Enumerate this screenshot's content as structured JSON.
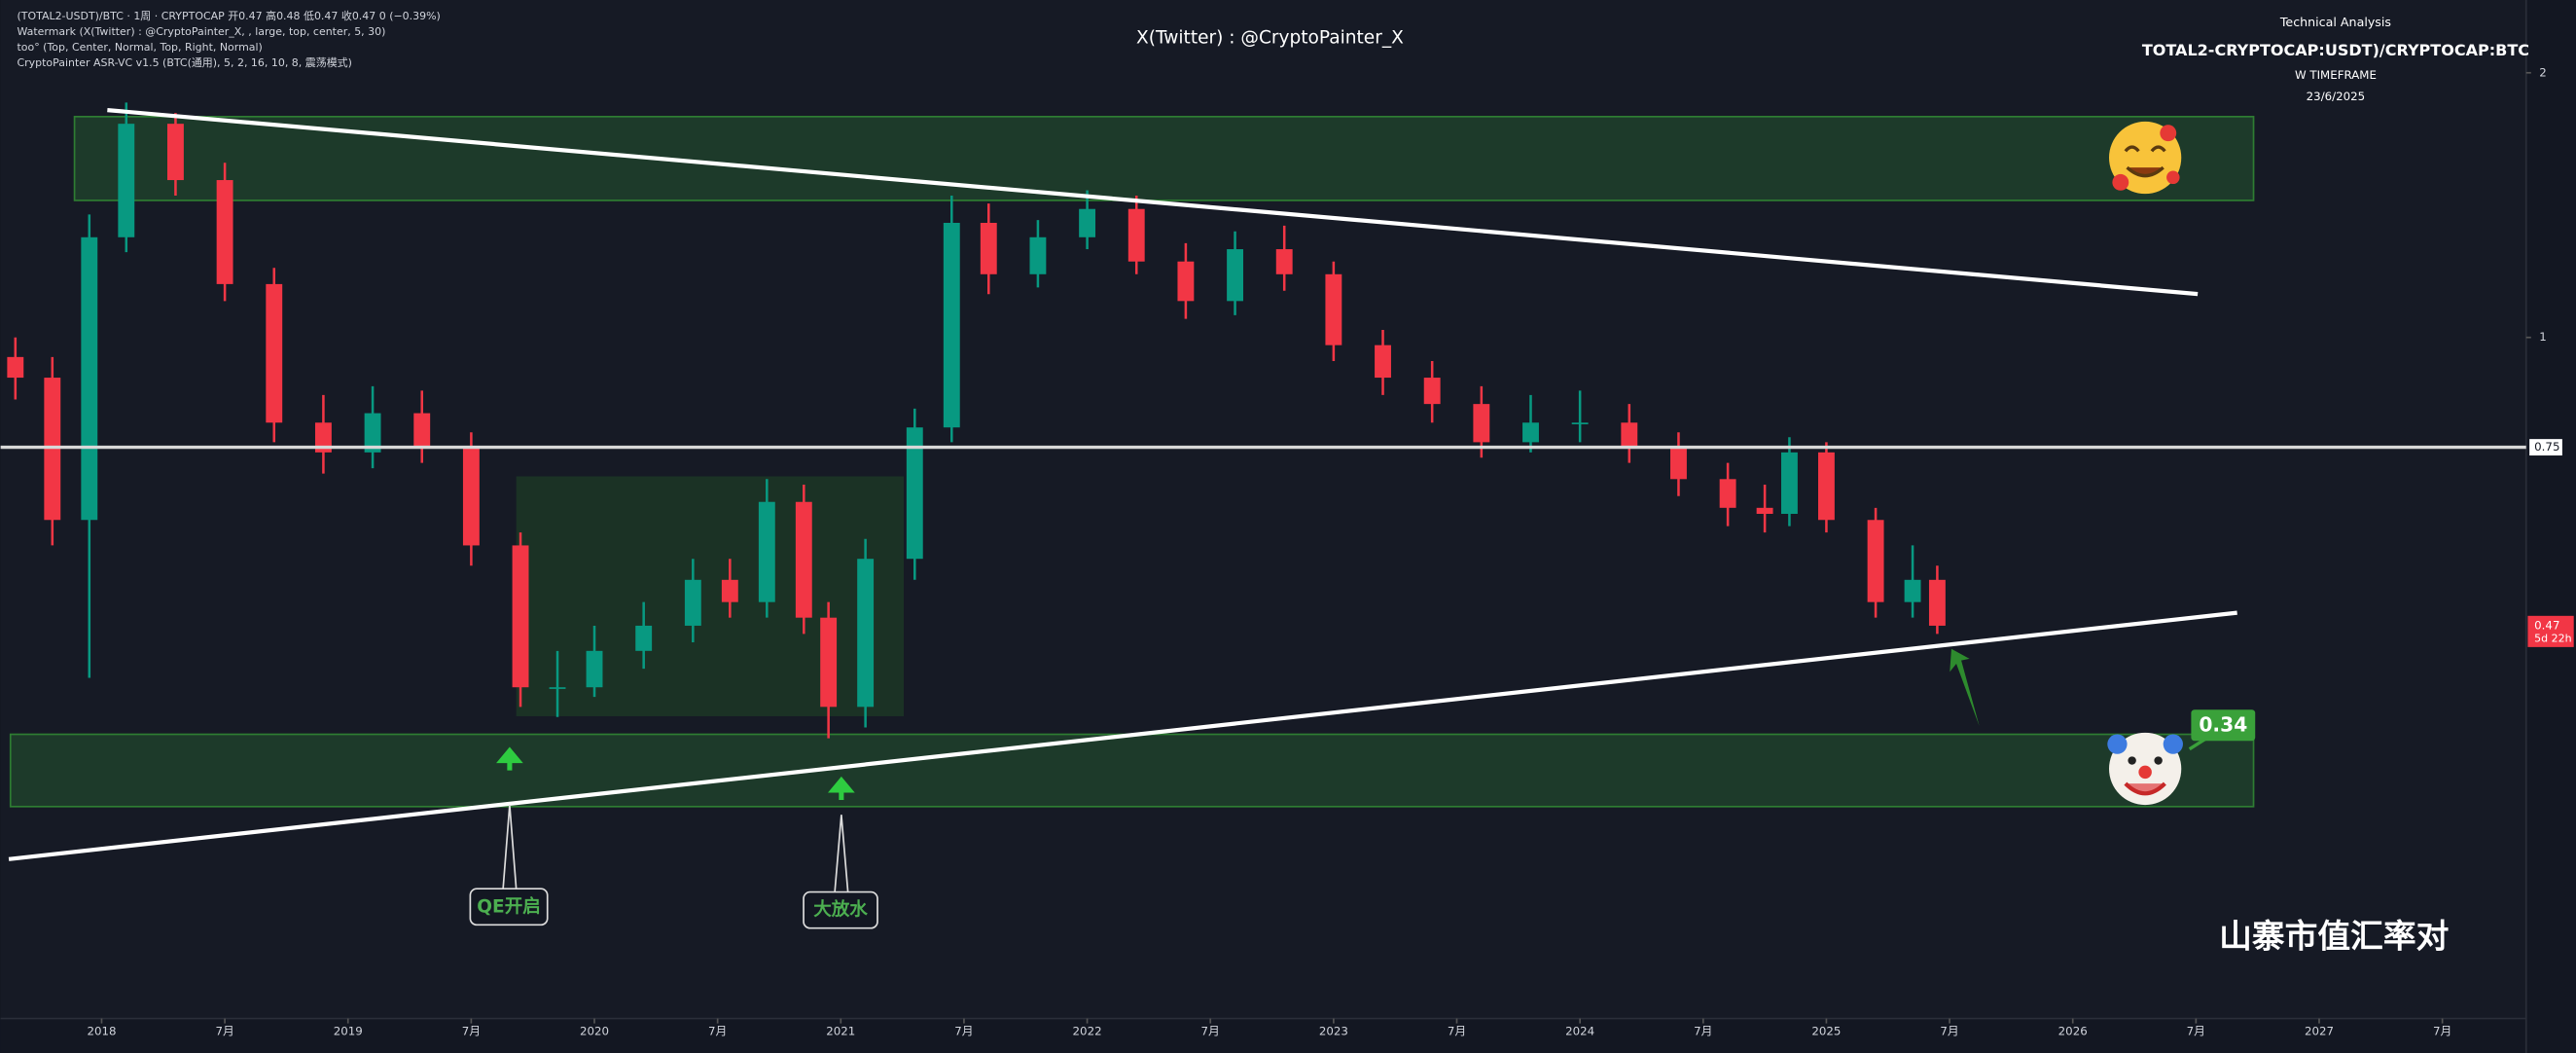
{
  "chart_data": {
    "type": "candlestick",
    "title": "X(Twitter) : @CryptoPainter_X",
    "legend_lines": [
      "(TOTAL2-USDT)/BTC · 1周 · CRYPTOCAP  开0.47 高0.48 低0.47 收0.47 0 (−0.39%)",
      "Watermark (X(Twitter) : @CryptoPainter_X, , large, top, center, 5, 30)",
      "too° (Top, Center, Normal, Top, Right, Normal)",
      "CryptoPainter ASR-VC v1.5 (BTC(通用), 5, 2, 16, 10, 8, 震荡模式)"
    ],
    "info_box": {
      "heading": "Technical Analysis",
      "pair": "TOTAL2-CRYPTOCAP:USDT)/CRYPTOCAP:BTC",
      "timeframe": "W TIMEFRAME",
      "date": "23/6/2025"
    },
    "annotations": {
      "qe": "QE开启",
      "liquidity": "大放水",
      "target": 0.34,
      "caption": "山寨市值汇率对"
    },
    "x": [
      2017.65,
      2017.8,
      2017.95,
      2018.1,
      2018.3,
      2018.5,
      2018.7,
      2018.9,
      2019.1,
      2019.3,
      2019.5,
      2019.7,
      2019.85,
      2020.0,
      2020.2,
      2020.4,
      2020.55,
      2020.7,
      2020.85,
      2020.95,
      2021.1,
      2021.3,
      2021.45,
      2021.6,
      2021.8,
      2022.0,
      2022.2,
      2022.4,
      2022.6,
      2022.8,
      2023.0,
      2023.2,
      2023.4,
      2023.6,
      2023.8,
      2024.0,
      2024.2,
      2024.4,
      2024.6,
      2024.75,
      2024.85,
      2025.0,
      2025.2,
      2025.35,
      2025.45
    ],
    "open": [
      0.95,
      0.9,
      0.62,
      1.3,
      1.75,
      1.51,
      1.15,
      0.8,
      0.74,
      0.82,
      0.75,
      0.58,
      0.4,
      0.4,
      0.44,
      0.47,
      0.53,
      0.5,
      0.65,
      0.48,
      0.38,
      0.56,
      0.79,
      1.35,
      1.18,
      1.3,
      1.4,
      1.22,
      1.1,
      1.26,
      1.18,
      0.98,
      0.9,
      0.84,
      0.76,
      0.8,
      0.8,
      0.75,
      0.69,
      0.64,
      0.63,
      0.74,
      0.62,
      0.5,
      0.53
    ],
    "high": [
      1.0,
      0.95,
      1.38,
      1.85,
      1.8,
      1.58,
      1.2,
      0.86,
      0.88,
      0.87,
      0.78,
      0.6,
      0.44,
      0.47,
      0.5,
      0.56,
      0.56,
      0.69,
      0.68,
      0.5,
      0.59,
      0.83,
      1.45,
      1.42,
      1.36,
      1.47,
      1.45,
      1.28,
      1.32,
      1.34,
      1.22,
      1.02,
      0.94,
      0.88,
      0.86,
      0.87,
      0.84,
      0.78,
      0.72,
      0.68,
      0.77,
      0.76,
      0.64,
      0.58,
      0.55
    ],
    "low": [
      0.85,
      0.58,
      0.41,
      1.25,
      1.45,
      1.1,
      0.76,
      0.7,
      0.71,
      0.72,
      0.55,
      0.38,
      0.37,
      0.39,
      0.42,
      0.45,
      0.48,
      0.48,
      0.46,
      0.35,
      0.36,
      0.53,
      0.76,
      1.12,
      1.14,
      1.26,
      1.18,
      1.05,
      1.06,
      1.13,
      0.94,
      0.86,
      0.8,
      0.73,
      0.74,
      0.76,
      0.72,
      0.66,
      0.61,
      0.6,
      0.61,
      0.6,
      0.48,
      0.48,
      0.46
    ],
    "close": [
      0.9,
      0.62,
      1.3,
      1.75,
      1.51,
      1.15,
      0.8,
      0.74,
      0.82,
      0.75,
      0.58,
      0.4,
      0.4,
      0.44,
      0.47,
      0.53,
      0.5,
      0.65,
      0.48,
      0.38,
      0.56,
      0.79,
      1.35,
      1.18,
      1.3,
      1.4,
      1.22,
      1.1,
      1.26,
      1.18,
      0.98,
      0.9,
      0.84,
      0.76,
      0.8,
      0.8,
      0.75,
      0.69,
      0.64,
      0.63,
      0.74,
      0.62,
      0.5,
      0.53,
      0.47
    ],
    "up_color": "#089981",
    "down_color": "#f23645",
    "log_scale": true,
    "ylim": [
      0.168,
      2.42
    ],
    "yticks": [
      2,
      1
    ],
    "hline": 0.75,
    "last_price": 0.47,
    "countdown": "5d 22h",
    "xlim": [
      2017.59,
      2027.84
    ],
    "xticks": [
      2018,
      {
        "value": 2018.5,
        "label": "7月"
      },
      2019,
      {
        "value": 2019.5,
        "label": "7月"
      },
      2020,
      {
        "value": 2020.5,
        "label": "7月"
      },
      2021,
      {
        "value": 2021.5,
        "label": "7月"
      },
      2022,
      {
        "value": 2022.5,
        "label": "7月"
      },
      2023,
      {
        "value": 2023.5,
        "label": "7月"
      },
      2024,
      {
        "value": 2024.5,
        "label": "7月"
      },
      2025,
      {
        "value": 2025.5,
        "label": "7月"
      },
      2026,
      {
        "value": 2026.5,
        "label": "7月"
      },
      2027,
      {
        "value": 2027.5,
        "label": "7月"
      }
    ]
  }
}
